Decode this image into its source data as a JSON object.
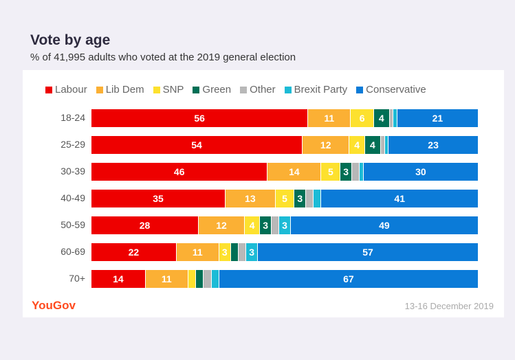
{
  "chart_data": {
    "type": "bar",
    "orientation": "horizontal",
    "stacked": true,
    "title": "Vote by age",
    "subtitle": "% of 41,995 adults who voted at the 2019 general election",
    "categories": [
      "18-24",
      "25-29",
      "30-39",
      "40-49",
      "50-59",
      "60-69",
      "70+"
    ],
    "series": [
      {
        "name": "Labour",
        "color": "#ee0000",
        "values": [
          56,
          54,
          46,
          35,
          28,
          22,
          14
        ]
      },
      {
        "name": "Lib Dem",
        "color": "#fbb034",
        "values": [
          11,
          12,
          14,
          13,
          12,
          11,
          11
        ]
      },
      {
        "name": "SNP",
        "color": "#fde12e",
        "values": [
          6,
          4,
          5,
          5,
          4,
          3,
          2
        ]
      },
      {
        "name": "Green",
        "color": "#006f55",
        "values": [
          4,
          4,
          3,
          3,
          3,
          2,
          2
        ]
      },
      {
        "name": "Other",
        "color": "#b8b8b8",
        "values": [
          1,
          1,
          2,
          2,
          2,
          2,
          2
        ]
      },
      {
        "name": "Brexit Party",
        "color": "#1cbbd6",
        "values": [
          1,
          1,
          1,
          2,
          3,
          3,
          2
        ]
      },
      {
        "name": "Conservative",
        "color": "#0b7bd8",
        "values": [
          21,
          23,
          30,
          41,
          49,
          57,
          67
        ]
      }
    ],
    "legend": "top",
    "label_min": 3
  },
  "footer": {
    "logo": "YouGov",
    "date": "13-16 December 2019"
  }
}
